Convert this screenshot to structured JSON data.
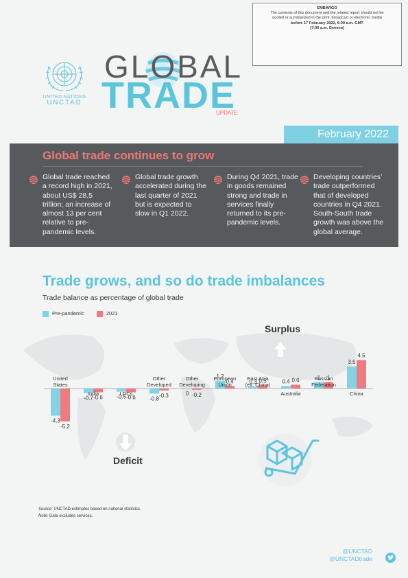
{
  "embargo": {
    "heading": "EMBARGO",
    "line1": "The contents of this document and the related report should not be",
    "line2": "quoted or summarized in the print, broadcast or electronic media",
    "line3": "before 17 February 2022, 6:00 a.m. GMT",
    "line4": "(7:00 a.m. Geneva)"
  },
  "brand": {
    "un_line": "UNITED NATIONS",
    "unctad": "UNCTAD",
    "title1": "GLOBAL",
    "title2": "TRADE",
    "update": "UPDATE",
    "date": "February 2022"
  },
  "colors": {
    "accent_blue": "#5bc5dc",
    "accent_red": "#f07676",
    "dark_panel": "#575a5d"
  },
  "highlights": {
    "title": "Global trade continues to grow",
    "items": [
      "Global trade reached a record high in 2021, about US$ 28.5 trillion; an increase of almost 13 per cent relative to pre-pandemic levels.",
      "Global trade growth accelerated during the last quarter of 2021 but is expected to slow in Q1 2022.",
      "During Q4 2021, trade in goods remained strong and trade in services finally returned to its pre-pandemic levels.",
      "Developing countries’ trade outperformed that of developed countries in Q4 2021. South-South trade growth was above the global average."
    ]
  },
  "section": {
    "title": "Trade grows, and so do trade imbalances",
    "subtitle": "Trade balance as percentage of global trade"
  },
  "chart_data": {
    "type": "bar",
    "categories": [
      "United States",
      "India",
      "LDCs",
      "Other Developed",
      "Other Developing",
      "European Union",
      "East Asia (ex. China)",
      "Australia",
      "Russian Federation",
      "China"
    ],
    "category_lines": [
      [
        "United",
        "States"
      ],
      [
        "India"
      ],
      [
        "LDCs"
      ],
      [
        "Other",
        "Developed"
      ],
      [
        "Other",
        "Developing"
      ],
      [
        "European",
        "Union"
      ],
      [
        "East Asia",
        "(ex. China)"
      ],
      [
        "Australia"
      ],
      [
        "Russian",
        "Federation"
      ],
      [
        "China"
      ]
    ],
    "series": [
      {
        "name": "Pre-pandemic",
        "color": "#7fd4e6",
        "values": [
          -4.3,
          -0.7,
          -0.5,
          -0.8,
          0,
          1.2,
          0.3,
          0.4,
          1,
          3.5
        ],
        "labels": [
          "-4.3",
          "-0.7",
          "-0.5",
          "-0.8",
          "0",
          "1.2",
          "0.3",
          "0.4",
          "1",
          "3.5"
        ]
      },
      {
        "name": "2021",
        "color": "#f07a7e",
        "values": [
          -5.2,
          -0.6,
          -0.6,
          -0.3,
          -0.2,
          0.4,
          0.5,
          0.6,
          1,
          4.5
        ],
        "labels": [
          "-5.2",
          "-0.6",
          "-0.6",
          "-0.3",
          "-0.2",
          "0.4",
          "0.5",
          "0.6",
          "1",
          "4.5"
        ]
      }
    ],
    "annotations": {
      "surplus": "Surplus",
      "deficit": "Deficit"
    },
    "legend_position": "top-left",
    "grid": false
  },
  "source": {
    "source_label": "Source:",
    "source_text": "UNCTAD estimates based on national statistics.",
    "note_label": "Note:",
    "note_text": "Data excludes services."
  },
  "footer": {
    "handle1": "@UNCTAD",
    "handle2": "@UNCTADtrade"
  }
}
